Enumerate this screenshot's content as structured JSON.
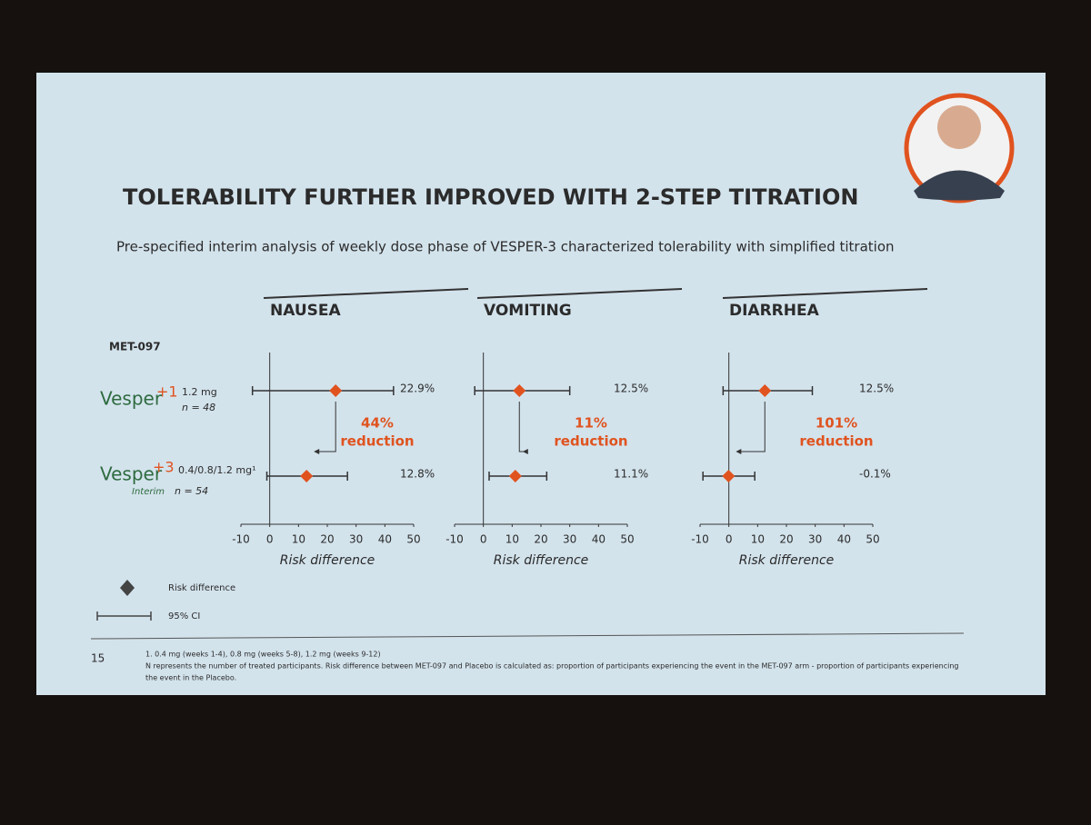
{
  "slide": {
    "title": "TOLERABILITY FURTHER IMPROVED WITH 2-STEP TITRATION",
    "subtitle": "Pre-specified interim analysis of weekly dose phase of VESPER-3 characterized tolerability with simplified titration",
    "group_label": "MET-097",
    "rows": [
      {
        "name": "Vesper",
        "mark": "+1",
        "dose": "1.2 mg",
        "n": "n = 48"
      },
      {
        "name": "Vesper",
        "mark": "+3",
        "dose": "0.4/0.8/1.2 mg¹",
        "note": "Interim",
        "n": "n = 54"
      }
    ],
    "legend": {
      "point": "Risk difference",
      "interval": "95% CI"
    },
    "page_number": "15",
    "footnotes": [
      "1. 0.4 mg (weeks 1-4), 0.8 mg (weeks 5-8), 1.2 mg (weeks 9-12)",
      "N represents the number of treated participants. Risk difference between MET-097 and Placebo is calculated as: proportion of participants experiencing the event in the MET-097 arm - proportion of participants experiencing",
      "the event in the Placebo."
    ]
  },
  "chart_data": [
    {
      "type": "forest",
      "title": "NAUSEA",
      "xlabel": "Risk difference",
      "color": "#e0531f",
      "values": [
        22.9,
        12.8
      ],
      "value_labels": [
        "22.9%",
        "12.8%"
      ],
      "ci_low": [
        -6,
        -1
      ],
      "ci_high": [
        43,
        27
      ],
      "annotation": [
        "44%",
        "reduction"
      ],
      "xlim": [
        -10,
        50
      ],
      "xticks": [
        -10,
        0,
        10,
        20,
        30,
        40,
        50
      ]
    },
    {
      "type": "forest",
      "title": "VOMITING",
      "xlabel": "Risk difference",
      "color": "#e0531f",
      "values": [
        12.5,
        11.1
      ],
      "value_labels": [
        "12.5%",
        "11.1%"
      ],
      "ci_low": [
        -3,
        2
      ],
      "ci_high": [
        30,
        22
      ],
      "annotation": [
        "11%",
        "reduction"
      ],
      "xlim": [
        -10,
        50
      ],
      "xticks": [
        -10,
        0,
        10,
        20,
        30,
        40,
        50
      ]
    },
    {
      "type": "forest",
      "title": "DIARRHEA",
      "xlabel": "Risk difference",
      "color": "#e0531f",
      "values": [
        12.5,
        -0.1
      ],
      "value_labels": [
        "12.5%",
        "-0.1%"
      ],
      "ci_low": [
        -2,
        -9
      ],
      "ci_high": [
        29,
        9
      ],
      "annotation": [
        "101%",
        "reduction"
      ],
      "xlim": [
        -10,
        50
      ],
      "xticks": [
        -10,
        0,
        10,
        20,
        30,
        40,
        50
      ]
    }
  ]
}
